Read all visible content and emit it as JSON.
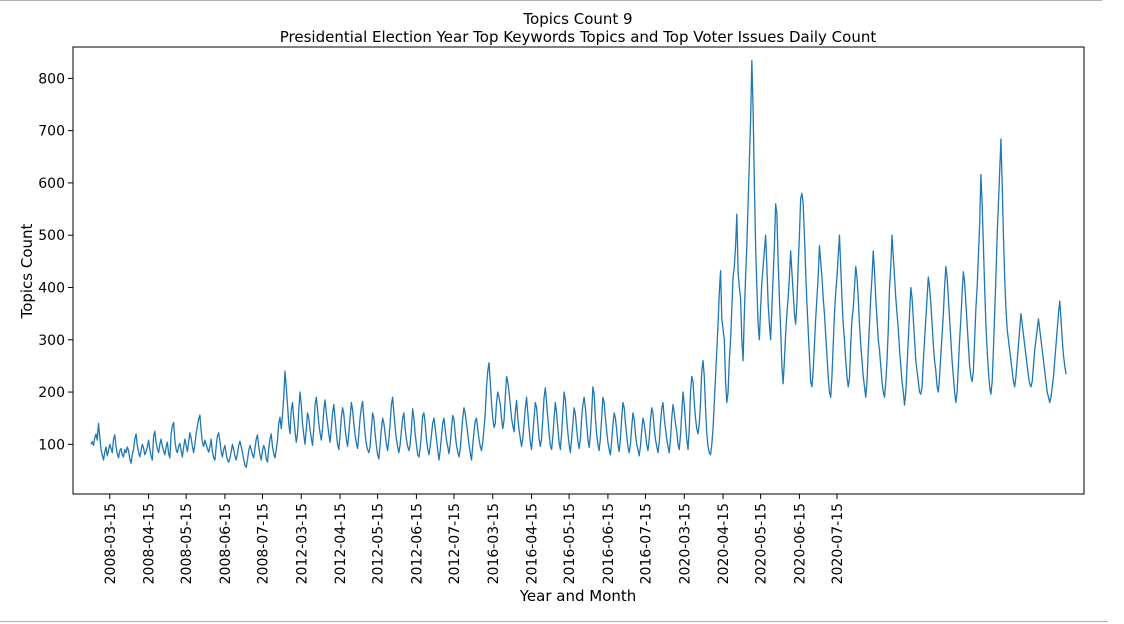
{
  "chart_data": {
    "type": "line",
    "title": "Topics Count 9",
    "subtitle": "Presidential Election Year Top Keywords Topics and Top Voter Issues Daily Count",
    "xlabel": "Year and Month",
    "ylabel": "Topics Count",
    "ylim": [
      5,
      860
    ],
    "yticks": [
      100,
      200,
      300,
      400,
      500,
      600,
      700,
      800
    ],
    "grid": false,
    "line_color": "#1f77b4",
    "xticks": [
      {
        "label": "2008-03-15",
        "index": 15
      },
      {
        "label": "2008-04-15",
        "index": 46
      },
      {
        "label": "2008-05-15",
        "index": 76
      },
      {
        "label": "2008-06-15",
        "index": 107
      },
      {
        "label": "2008-07-15",
        "index": 137
      },
      {
        "label": "2012-03-15",
        "index": 168
      },
      {
        "label": "2012-04-15",
        "index": 199
      },
      {
        "label": "2012-05-15",
        "index": 229
      },
      {
        "label": "2012-06-15",
        "index": 260
      },
      {
        "label": "2012-07-15",
        "index": 290
      },
      {
        "label": "2016-03-15",
        "index": 321
      },
      {
        "label": "2016-04-15",
        "index": 352
      },
      {
        "label": "2016-05-15",
        "index": 382
      },
      {
        "label": "2016-06-15",
        "index": 413
      },
      {
        "label": "2016-07-15",
        "index": 443
      },
      {
        "label": "2020-03-15",
        "index": 474
      },
      {
        "label": "2020-04-15",
        "index": 505
      },
      {
        "label": "2020-05-15",
        "index": 535
      },
      {
        "label": "2020-06-15",
        "index": 566
      },
      {
        "label": "2020-07-15",
        "index": 596
      }
    ],
    "series": [
      {
        "values": [
          100,
          105,
          98,
          112,
          120,
          108,
          140,
          115,
          90,
          80,
          70,
          85,
          95,
          78,
          88,
          100,
          92,
          84,
          110,
          118,
          96,
          82,
          74,
          88,
          92,
          80,
          76,
          90,
          84,
          95,
          88,
          72,
          64,
          80,
          90,
          110,
          120,
          98,
          85,
          76,
          88,
          100,
          93,
          80,
          86,
          95,
          108,
          90,
          78,
          70,
          115,
          125,
          104,
          92,
          84,
          100,
          110,
          96,
          88,
          80,
          95,
          104,
          82,
          74,
          120,
          135,
          142,
          108,
          90,
          84,
          96,
          102,
          88,
          76,
          94,
          110,
          98,
          86,
          104,
          122,
          112,
          96,
          84,
          100,
          120,
          135,
          148,
          156,
          126,
          104,
          96,
          108,
          100,
          92,
          85,
          95,
          110,
          86,
          74,
          70,
          96,
          116,
          122,
          106,
          86,
          76,
          90,
          98,
          82,
          70,
          66,
          74,
          86,
          100,
          90,
          78,
          70,
          82,
          98,
          106,
          96,
          84,
          72,
          60,
          56,
          70,
          88,
          98,
          90,
          80,
          74,
          92,
          110,
          118,
          96,
          80,
          70,
          88,
          98,
          90,
          72,
          66,
          92,
          110,
          120,
          96,
          82,
          74,
          90,
          108,
          140,
          152,
          130,
          156,
          190,
          240,
          210,
          176,
          140,
          120,
          165,
          180,
          150,
          126,
          104,
          120,
          165,
          200,
          176,
          140,
          118,
          100,
          130,
          160,
          150,
          128,
          112,
          98,
          130,
          175,
          190,
          168,
          140,
          122,
          108,
          130,
          166,
          185,
          160,
          140,
          120,
          104,
          130,
          160,
          176,
          150,
          122,
          100,
          90,
          118,
          150,
          170,
          158,
          130,
          110,
          96,
          120,
          150,
          180,
          166,
          140,
          118,
          102,
          92,
          120,
          150,
          170,
          182,
          150,
          120,
          100,
          90,
          84,
          96,
          130,
          160,
          150,
          120,
          98,
          80,
          72,
          100,
          128,
          150,
          140,
          120,
          100,
          88,
          110,
          140,
          176,
          190,
          160,
          132,
          110,
          95,
          84,
          100,
          126,
          150,
          160,
          130,
          110,
          96,
          88,
          100,
          130,
          168,
          150,
          120,
          100,
          80,
          76,
          92,
          120,
          155,
          160,
          140,
          110,
          92,
          80,
          96,
          118,
          140,
          150,
          132,
          110,
          90,
          70,
          88,
          115,
          140,
          150,
          128,
          108,
          96,
          82,
          100,
          130,
          155,
          148,
          120,
          98,
          86,
          76,
          90,
          120,
          150,
          170,
          158,
          140,
          120,
          100,
          84,
          70,
          98,
          124,
          145,
          150,
          130,
          110,
          96,
          88,
          104,
          130,
          160,
          210,
          240,
          256,
          220,
          180,
          150,
          132,
          140,
          180,
          200,
          190,
          176,
          150,
          130,
          146,
          190,
          230,
          220,
          200,
          176,
          150,
          136,
          124,
          160,
          184,
          150,
          128,
          112,
          96,
          112,
          140,
          170,
          190,
          160,
          130,
          104,
          90,
          120,
          150,
          180,
          170,
          140,
          110,
          96,
          112,
          150,
          190,
          208,
          180,
          150,
          120,
          98,
          90,
          114,
          150,
          180,
          160,
          130,
          104,
          90,
          120,
          160,
          200,
          186,
          150,
          122,
          100,
          84,
          110,
          140,
          170,
          158,
          130,
          106,
          92,
          110,
          150,
          176,
          190,
          170,
          140,
          110,
          94,
          118,
          160,
          210,
          196,
          150,
          120,
          100,
          88,
          112,
          150,
          190,
          180,
          150,
          126,
          104,
          90,
          80,
          106,
          138,
          160,
          150,
          128,
          100,
          86,
          112,
          150,
          180,
          170,
          140,
          116,
          96,
          84,
          100,
          132,
          160,
          148,
          120,
          100,
          90,
          78,
          96,
          126,
          150,
          140,
          120,
          100,
          88,
          110,
          146,
          170,
          160,
          130,
          110,
          96,
          84,
          104,
          140,
          168,
          180,
          150,
          130,
          110,
          96,
          84,
          110,
          150,
          176,
          160,
          140,
          124,
          100,
          90,
          118,
          160,
          200,
          176,
          140,
          110,
          90,
          130,
          200,
          230,
          220,
          180,
          150,
          130,
          120,
          140,
          180,
          240,
          260,
          230,
          170,
          120,
          96,
          84,
          80,
          100,
          130,
          180,
          230,
          280,
          330,
          390,
          432,
          340,
          320,
          300,
          220,
          180,
          200,
          260,
          300,
          360,
          420,
          440,
          480,
          540,
          430,
          400,
          380,
          300,
          260,
          350,
          420,
          480,
          560,
          640,
          720,
          834,
          740,
          600,
          480,
          400,
          330,
          300,
          360,
          410,
          440,
          470,
          500,
          440,
          370,
          330,
          300,
          360,
          420,
          480,
          560,
          540,
          450,
          380,
          320,
          250,
          216,
          260,
          310,
          350,
          380,
          420,
          470,
          430,
          390,
          350,
          330,
          370,
          440,
          500,
          570,
          580,
          560,
          500,
          430,
          370,
          320,
          270,
          220,
          210,
          240,
          290,
          340,
          380,
          420,
          480,
          450,
          420,
          380,
          350,
          310,
          270,
          230,
          200,
          190,
          230,
          290,
          350,
          390,
          420,
          460,
          500,
          440,
          380,
          330,
          300,
          260,
          230,
          210,
          226,
          290,
          340,
          360,
          400,
          440,
          420,
          380,
          330,
          290,
          260,
          230,
          210,
          190,
          220,
          280,
          330,
          380,
          420,
          470,
          430,
          380,
          340,
          300,
          280,
          250,
          220,
          200,
          190,
          220,
          260,
          320,
          400,
          440,
          500,
          460,
          420,
          380,
          350,
          320,
          280,
          250,
          220,
          200,
          175,
          200,
          250,
          300,
          350,
          400,
          380,
          340,
          300,
          260,
          240,
          220,
          200,
          196,
          210,
          260,
          300,
          340,
          380,
          420,
          400,
          370,
          330,
          290,
          260,
          240,
          210,
          200,
          230,
          270,
          310,
          350,
          400,
          440,
          420,
          380,
          340,
          300,
          260,
          230,
          200,
          180,
          200,
          250,
          300,
          340,
          390,
          430,
          410,
          370,
          330,
          290,
          250,
          230,
          220,
          240,
          300,
          360,
          400,
          460,
          520,
          616,
          560,
          480,
          400,
          330,
          280,
          240,
          210,
          196,
          220,
          280,
          350,
          420,
          500,
          560,
          620,
          684,
          600,
          500,
          420,
          360,
          320,
          300,
          280,
          260,
          240,
          220,
          210,
          230,
          260,
          290,
          320,
          350,
          330,
          310,
          290,
          270,
          250,
          230,
          216,
          210,
          220,
          250,
          280,
          300,
          320,
          340,
          320,
          300,
          280,
          260,
          240,
          220,
          200,
          190,
          180,
          190,
          210,
          230,
          260,
          290,
          320,
          350,
          374,
          340,
          300,
          270,
          250,
          234
        ]
      }
    ]
  }
}
